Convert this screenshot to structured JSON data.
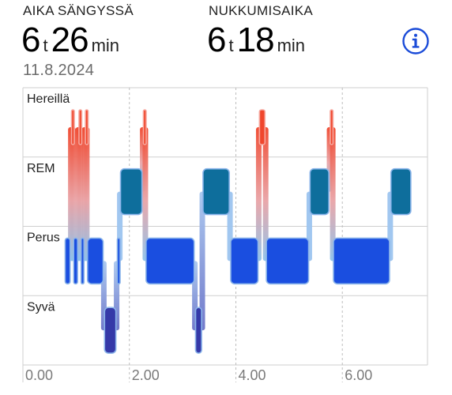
{
  "header": {
    "in_bed": {
      "label": "AIKA SÄNGYSSÄ",
      "hours": "6",
      "hours_unit": "t",
      "minutes": "26",
      "minutes_unit": "min"
    },
    "asleep": {
      "label": "NUKKUMISAIKA",
      "hours": "6",
      "hours_unit": "t",
      "minutes": "18",
      "minutes_unit": "min"
    },
    "date": "11.8.2024",
    "info_icon": "info-circle-icon"
  },
  "colors": {
    "awake": "#f0462c",
    "rem": "#0e6e9c",
    "core": "#1a4ee0",
    "deep": "#3539a8",
    "connector": "#9cc4ef",
    "grid": "#cfcfcf",
    "accent": "#1a4bd8"
  },
  "chart_data": {
    "type": "hypnogram",
    "stages": [
      "Hereillä",
      "REM",
      "Perus",
      "Syvä"
    ],
    "x_ticks": [
      "0.00",
      "2.00",
      "4.00",
      "6.00"
    ],
    "x_tick_hours": [
      0,
      2,
      4,
      6
    ],
    "x_range_hours": [
      0,
      7.6
    ],
    "segments": [
      {
        "stage": "Perus",
        "start": 0.78,
        "end": 0.9
      },
      {
        "stage": "Hereillä",
        "start": 0.9,
        "end": 0.94
      },
      {
        "stage": "Perus",
        "start": 0.94,
        "end": 1.04
      },
      {
        "stage": "Hereillä",
        "start": 1.04,
        "end": 1.08
      },
      {
        "stage": "Perus",
        "start": 1.08,
        "end": 1.16
      },
      {
        "stage": "Hereillä",
        "start": 1.16,
        "end": 1.2
      },
      {
        "stage": "Perus",
        "start": 1.2,
        "end": 1.52
      },
      {
        "stage": "Syvä",
        "start": 1.52,
        "end": 1.76
      },
      {
        "stage": "Perus",
        "start": 1.76,
        "end": 1.82
      },
      {
        "stage": "REM",
        "start": 1.82,
        "end": 2.25
      },
      {
        "stage": "Hereillä",
        "start": 2.25,
        "end": 2.3
      },
      {
        "stage": "Perus",
        "start": 2.3,
        "end": 3.23
      },
      {
        "stage": "Syvä",
        "start": 3.23,
        "end": 3.37
      },
      {
        "stage": "REM",
        "start": 3.37,
        "end": 3.89
      },
      {
        "stage": "Perus",
        "start": 3.89,
        "end": 4.43
      },
      {
        "stage": "Hereillä",
        "start": 4.43,
        "end": 4.56
      },
      {
        "stage": "Perus",
        "start": 4.56,
        "end": 5.38
      },
      {
        "stage": "REM",
        "start": 5.38,
        "end": 5.76
      },
      {
        "stage": "Hereillä",
        "start": 5.76,
        "end": 5.82
      },
      {
        "stage": "Perus",
        "start": 5.82,
        "end": 6.9
      },
      {
        "stage": "REM",
        "start": 6.9,
        "end": 7.3
      }
    ]
  }
}
